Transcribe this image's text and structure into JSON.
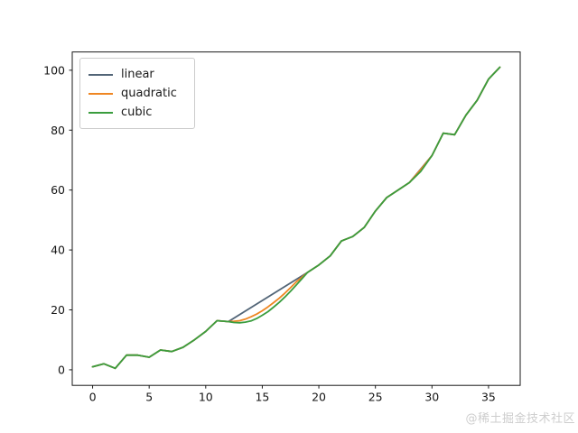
{
  "watermark": {
    "text": "@稀土掘金技术社区"
  },
  "chart_data": {
    "type": "line",
    "title": "",
    "xlabel": "",
    "ylabel": "",
    "grid": false,
    "legend_position": "upper left",
    "xlim": [
      -1.8,
      37.8
    ],
    "ylim": [
      -5.2,
      106.1
    ],
    "x_ticks": [
      0,
      5,
      10,
      15,
      20,
      25,
      30,
      35
    ],
    "y_ticks": [
      0,
      20,
      40,
      60,
      80,
      100
    ],
    "axis_color": "#1a1a1a",
    "series": [
      {
        "name": "linear",
        "color": "#526577",
        "points": [
          [
            0,
            1
          ],
          [
            1,
            2
          ],
          [
            2,
            0.5
          ],
          [
            3,
            4.9
          ],
          [
            4,
            4.9
          ],
          [
            5,
            4.2
          ],
          [
            6,
            6.6
          ],
          [
            7,
            6.1
          ],
          [
            8,
            7.5
          ],
          [
            9,
            10
          ],
          [
            10,
            12.8
          ],
          [
            11,
            16.4
          ],
          [
            12,
            16.1
          ],
          [
            19,
            32.5
          ],
          [
            20,
            35
          ],
          [
            21,
            38
          ],
          [
            22,
            43
          ],
          [
            23,
            44.5
          ],
          [
            24,
            47.5
          ],
          [
            25,
            53
          ],
          [
            26,
            57.5
          ],
          [
            27,
            60
          ],
          [
            28,
            62.5
          ],
          [
            30,
            71.5
          ],
          [
            31,
            79
          ],
          [
            32,
            78.5
          ],
          [
            33,
            85
          ],
          [
            34,
            90
          ],
          [
            35,
            97
          ],
          [
            36,
            101
          ]
        ]
      },
      {
        "name": "quadratic",
        "color": "#ef8622",
        "points": [
          [
            0,
            1
          ],
          [
            1,
            2
          ],
          [
            2,
            0.5
          ],
          [
            3,
            4.9
          ],
          [
            4,
            4.9
          ],
          [
            5,
            4.2
          ],
          [
            6,
            6.6
          ],
          [
            7,
            6.1
          ],
          [
            8,
            7.5
          ],
          [
            9,
            10
          ],
          [
            10,
            12.8
          ],
          [
            11,
            16.4
          ],
          [
            12,
            16.1
          ],
          [
            12.5,
            16.2
          ],
          [
            13,
            16.4
          ],
          [
            13.5,
            16.9
          ],
          [
            14,
            17.7
          ],
          [
            14.5,
            18.6
          ],
          [
            15,
            19.7
          ],
          [
            15.5,
            21
          ],
          [
            16,
            22.4
          ],
          [
            16.5,
            23.9
          ],
          [
            17,
            25.6
          ],
          [
            17.5,
            27.4
          ],
          [
            18,
            29.3
          ],
          [
            18.5,
            30.9
          ],
          [
            19,
            32.5
          ],
          [
            20,
            35
          ],
          [
            21,
            38
          ],
          [
            22,
            43
          ],
          [
            23,
            44.5
          ],
          [
            24,
            47.5
          ],
          [
            25,
            53
          ],
          [
            26,
            57.5
          ],
          [
            27,
            60
          ],
          [
            28,
            62.5
          ],
          [
            29,
            66.8
          ],
          [
            30,
            71.5
          ],
          [
            31,
            79
          ],
          [
            32,
            78.5
          ],
          [
            33,
            85
          ],
          [
            34,
            90
          ],
          [
            35,
            97
          ],
          [
            36,
            101
          ]
        ]
      },
      {
        "name": "cubic",
        "color": "#3a9d3e",
        "points": [
          [
            0,
            1
          ],
          [
            1,
            2
          ],
          [
            2,
            0.5
          ],
          [
            3,
            4.9
          ],
          [
            4,
            4.9
          ],
          [
            5,
            4.2
          ],
          [
            6,
            6.6
          ],
          [
            7,
            6.1
          ],
          [
            8,
            7.5
          ],
          [
            9,
            10
          ],
          [
            10,
            12.8
          ],
          [
            11,
            16.4
          ],
          [
            12,
            16.1
          ],
          [
            12.5,
            15.8
          ],
          [
            13,
            15.7
          ],
          [
            13.5,
            15.9
          ],
          [
            14,
            16.3
          ],
          [
            14.5,
            17.1
          ],
          [
            15,
            18.2
          ],
          [
            15.5,
            19.4
          ],
          [
            16,
            20.9
          ],
          [
            16.5,
            22.5
          ],
          [
            17,
            24.3
          ],
          [
            17.5,
            26.2
          ],
          [
            18,
            28.3
          ],
          [
            18.5,
            30.4
          ],
          [
            19,
            32.5
          ],
          [
            20,
            35
          ],
          [
            21,
            38
          ],
          [
            22,
            43
          ],
          [
            23,
            44.5
          ],
          [
            24,
            47.5
          ],
          [
            25,
            53
          ],
          [
            26,
            57.5
          ],
          [
            27,
            60
          ],
          [
            28,
            62.5
          ],
          [
            29,
            66.2
          ],
          [
            30,
            71.5
          ],
          [
            31,
            79
          ],
          [
            32,
            78.5
          ],
          [
            33,
            85
          ],
          [
            34,
            90
          ],
          [
            35,
            97
          ],
          [
            36,
            101
          ]
        ]
      }
    ]
  }
}
